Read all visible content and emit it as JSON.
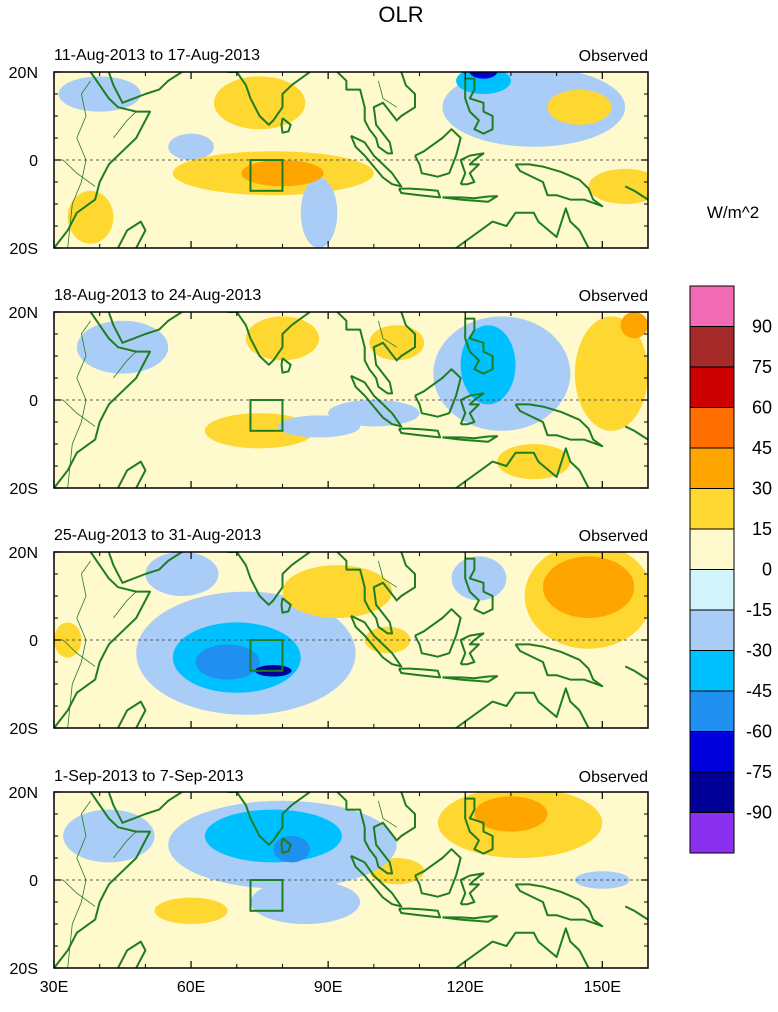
{
  "chart_data": {
    "type": "heatmap",
    "title": "OLR",
    "units_label": "W/m^2",
    "panel_label_right": "Observed",
    "x_ticks": [
      {
        "value": 30,
        "label": "30E"
      },
      {
        "value": 60,
        "label": "60E"
      },
      {
        "value": 90,
        "label": "90E"
      },
      {
        "value": 120,
        "label": "120E"
      },
      {
        "value": 150,
        "label": "150E"
      }
    ],
    "y_ticks": [
      {
        "value": 20,
        "label": "20N"
      },
      {
        "value": 0,
        "label": "0"
      },
      {
        "value": -20,
        "label": "20S"
      }
    ],
    "xlim": [
      30,
      160
    ],
    "ylim": [
      -20,
      20
    ],
    "box_region": {
      "lon": [
        73,
        80
      ],
      "lat": [
        -7,
        0
      ]
    },
    "colorbar": {
      "levels": [
        "90",
        "75",
        "60",
        "45",
        "30",
        "15",
        "0",
        "-15",
        "-30",
        "-45",
        "-60",
        "-75",
        "-90"
      ],
      "colors": [
        "#f26bb5",
        "#a52a2a",
        "#cc0000",
        "#ff6e00",
        "#ffa500",
        "#ffd731",
        "#fffacd",
        "#d1f4fb",
        "#a9cdf7",
        "#00c1ff",
        "#1f8ff0",
        "#0000dc",
        "#000096",
        "#8c30f0"
      ]
    },
    "panels": [
      {
        "date_range": "11-Aug-2013 to 17-Aug-2013",
        "anomalies": [
          {
            "lon": 78,
            "lat": -3,
            "rx": 22,
            "ry": 5,
            "v": 20
          },
          {
            "lon": 80,
            "lat": -3,
            "rx": 9,
            "ry": 3,
            "v": 35
          },
          {
            "lon": 75,
            "lat": 13,
            "rx": 10,
            "ry": 6,
            "v": 18
          },
          {
            "lon": 135,
            "lat": 12,
            "rx": 20,
            "ry": 9,
            "v": -20
          },
          {
            "lon": 124,
            "lat": 18,
            "rx": 6,
            "ry": 3,
            "v": -45
          },
          {
            "lon": 124,
            "lat": 20,
            "rx": 3,
            "ry": 1.5,
            "v": -70
          },
          {
            "lon": 145,
            "lat": 12,
            "rx": 7,
            "ry": 4,
            "v": 20
          },
          {
            "lon": 155,
            "lat": -6,
            "rx": 8,
            "ry": 4,
            "v": 18
          },
          {
            "lon": 40,
            "lat": 15,
            "rx": 9,
            "ry": 4,
            "v": -25
          },
          {
            "lon": 38,
            "lat": -13,
            "rx": 5,
            "ry": 6,
            "v": 20
          },
          {
            "lon": 88,
            "lat": -12,
            "rx": 4,
            "ry": 8,
            "v": -20
          },
          {
            "lon": 60,
            "lat": 3,
            "rx": 5,
            "ry": 3,
            "v": -18
          }
        ]
      },
      {
        "date_range": "18-Aug-2013 to 24-Aug-2013",
        "anomalies": [
          {
            "lon": 128,
            "lat": 6,
            "rx": 15,
            "ry": 13,
            "v": -30
          },
          {
            "lon": 125,
            "lat": 8,
            "rx": 6,
            "ry": 9,
            "v": -45
          },
          {
            "lon": 152,
            "lat": 6,
            "rx": 8,
            "ry": 13,
            "v": 22
          },
          {
            "lon": 157,
            "lat": 17,
            "rx": 3,
            "ry": 3,
            "v": 40
          },
          {
            "lon": 105,
            "lat": 13,
            "rx": 6,
            "ry": 4,
            "v": 25
          },
          {
            "lon": 80,
            "lat": 14,
            "rx": 8,
            "ry": 5,
            "v": 18
          },
          {
            "lon": 75,
            "lat": -7,
            "rx": 12,
            "ry": 4,
            "v": 18
          },
          {
            "lon": 88,
            "lat": -6,
            "rx": 9,
            "ry": 2.5,
            "v": -30
          },
          {
            "lon": 45,
            "lat": 12,
            "rx": 10,
            "ry": 6,
            "v": -20
          },
          {
            "lon": 100,
            "lat": -3,
            "rx": 10,
            "ry": 3,
            "v": -20
          },
          {
            "lon": 135,
            "lat": -14,
            "rx": 8,
            "ry": 4,
            "v": 18
          }
        ]
      },
      {
        "date_range": "25-Aug-2013 to 31-Aug-2013",
        "anomalies": [
          {
            "lon": 72,
            "lat": -3,
            "rx": 24,
            "ry": 14,
            "v": -20
          },
          {
            "lon": 70,
            "lat": -4,
            "rx": 14,
            "ry": 8,
            "v": -35
          },
          {
            "lon": 68,
            "lat": -5,
            "rx": 7,
            "ry": 4,
            "v": -50
          },
          {
            "lon": 78,
            "lat": -7,
            "rx": 4,
            "ry": 1.3,
            "v": -80
          },
          {
            "lon": 147,
            "lat": 10,
            "rx": 14,
            "ry": 12,
            "v": 25
          },
          {
            "lon": 147,
            "lat": 12,
            "rx": 10,
            "ry": 7,
            "v": 40
          },
          {
            "lon": 92,
            "lat": 11,
            "rx": 12,
            "ry": 6,
            "v": 20
          },
          {
            "lon": 103,
            "lat": 0,
            "rx": 5,
            "ry": 3,
            "v": 20
          },
          {
            "lon": 123,
            "lat": 14,
            "rx": 6,
            "ry": 5,
            "v": -18
          },
          {
            "lon": 58,
            "lat": 15,
            "rx": 8,
            "ry": 5,
            "v": -18
          },
          {
            "lon": 33,
            "lat": 0,
            "rx": 3,
            "ry": 4,
            "v": 20
          }
        ]
      },
      {
        "date_range": "1-Sep-2013 to 7-Sep-2013",
        "anomalies": [
          {
            "lon": 80,
            "lat": 8,
            "rx": 25,
            "ry": 10,
            "v": -20
          },
          {
            "lon": 78,
            "lat": 10,
            "rx": 15,
            "ry": 6,
            "v": -35
          },
          {
            "lon": 82,
            "lat": 7,
            "rx": 4,
            "ry": 3,
            "v": -55
          },
          {
            "lon": 132,
            "lat": 13,
            "rx": 18,
            "ry": 8,
            "v": 20
          },
          {
            "lon": 130,
            "lat": 15,
            "rx": 8,
            "ry": 4,
            "v": 38
          },
          {
            "lon": 42,
            "lat": 10,
            "rx": 10,
            "ry": 6,
            "v": -18
          },
          {
            "lon": 85,
            "lat": -5,
            "rx": 12,
            "ry": 5,
            "v": -18
          },
          {
            "lon": 150,
            "lat": 0,
            "rx": 6,
            "ry": 2,
            "v": -30
          },
          {
            "lon": 105,
            "lat": 2,
            "rx": 6,
            "ry": 3,
            "v": 18
          },
          {
            "lon": 60,
            "lat": -7,
            "rx": 8,
            "ry": 3,
            "v": 15
          }
        ]
      }
    ]
  }
}
